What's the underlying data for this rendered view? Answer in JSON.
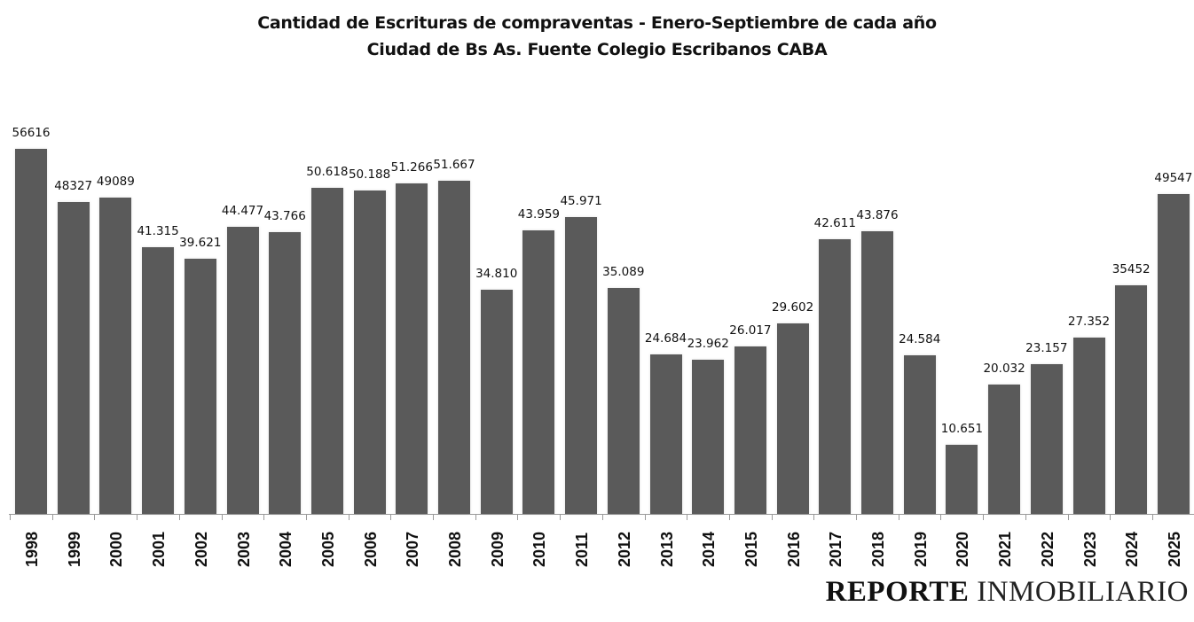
{
  "chart_data": {
    "type": "bar",
    "title": "Cantidad de Escrituras de compraventas - Enero-Septiembre de cada año",
    "subtitle": "Ciudad de Bs As. Fuente Colegio Escribanos CABA",
    "xlabel": "",
    "ylabel": "",
    "ylim": [
      0,
      56616
    ],
    "grid": false,
    "legend": null,
    "categories": [
      "1998",
      "1999",
      "2000",
      "2001",
      "2002",
      "2003",
      "2004",
      "2005",
      "2006",
      "2007",
      "2008",
      "2009",
      "2010",
      "2011",
      "2012",
      "2013",
      "2014",
      "2015",
      "2016",
      "2017",
      "2018",
      "2019",
      "2020",
      "2021",
      "2022",
      "2023",
      "2024",
      "2025"
    ],
    "values": [
      56616,
      48327,
      49089,
      41315,
      39621,
      44477,
      43766,
      50618,
      50188,
      51266,
      51667,
      34810,
      43959,
      45971,
      35089,
      24684,
      23962,
      26017,
      29602,
      42611,
      43876,
      24584,
      10651,
      20032,
      23157,
      27352,
      35452,
      49547
    ],
    "labels": [
      "56616",
      "48327",
      "49089",
      "41.315",
      "39.621",
      "44.477",
      "43.766",
      "50.618",
      "50.188",
      "51.266",
      "51.667",
      "34.810",
      "43.959",
      "45.971",
      "35.089",
      "24.684",
      "23.962",
      "26.017",
      "29.602",
      "42.611",
      "43.876",
      "24.584",
      "10.651",
      "20.032",
      "23.157",
      "27.352",
      "35452",
      "49547"
    ],
    "bar_color": "#5a5a5a",
    "axis_color": "#9a9a9a"
  },
  "header": {
    "title": "Cantidad de Escrituras de compraventas - Enero-Septiembre de cada año",
    "subtitle": "Ciudad de Bs As. Fuente Colegio Escribanos CABA"
  },
  "brand": {
    "bold": "REPORTE",
    "light": "INMOBILIARIO"
  }
}
